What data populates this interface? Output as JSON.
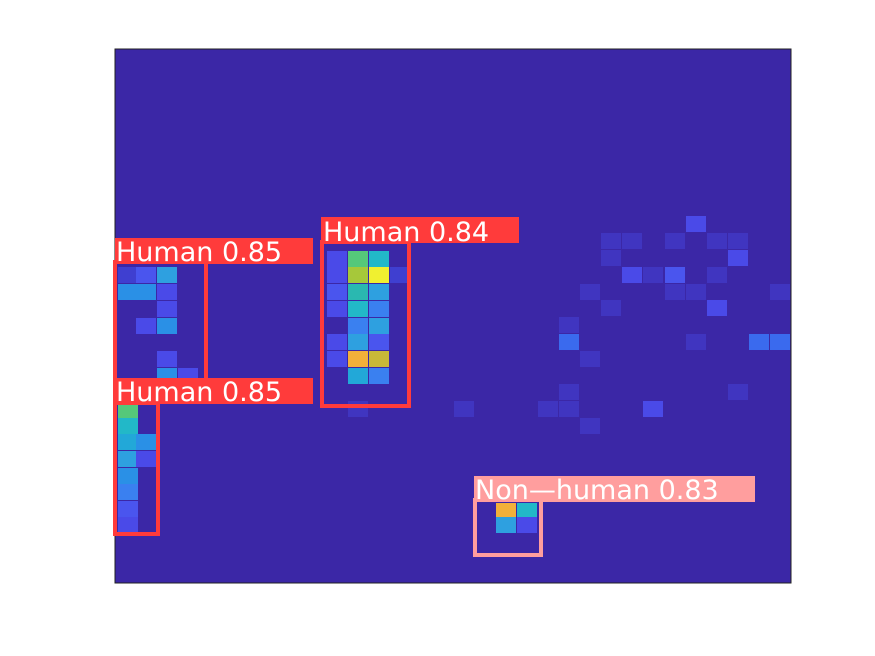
{
  "image": {
    "description_free": true,
    "background_color": "#3b27a6"
  },
  "detections": [
    {
      "label": "Human 0.85",
      "class": "Human",
      "score": 0.85,
      "color": "#ff3b3b"
    },
    {
      "label": "Human 0.84",
      "class": "Human",
      "score": 0.84,
      "color": "#ff3b3b"
    },
    {
      "label": "Human 0.85",
      "class": "Human",
      "score": 0.85,
      "color": "#ff3b3b"
    },
    {
      "label": "Non—human 0.83",
      "class": "Non-human",
      "score": 0.83,
      "color": "#ff9e9e"
    }
  ]
}
